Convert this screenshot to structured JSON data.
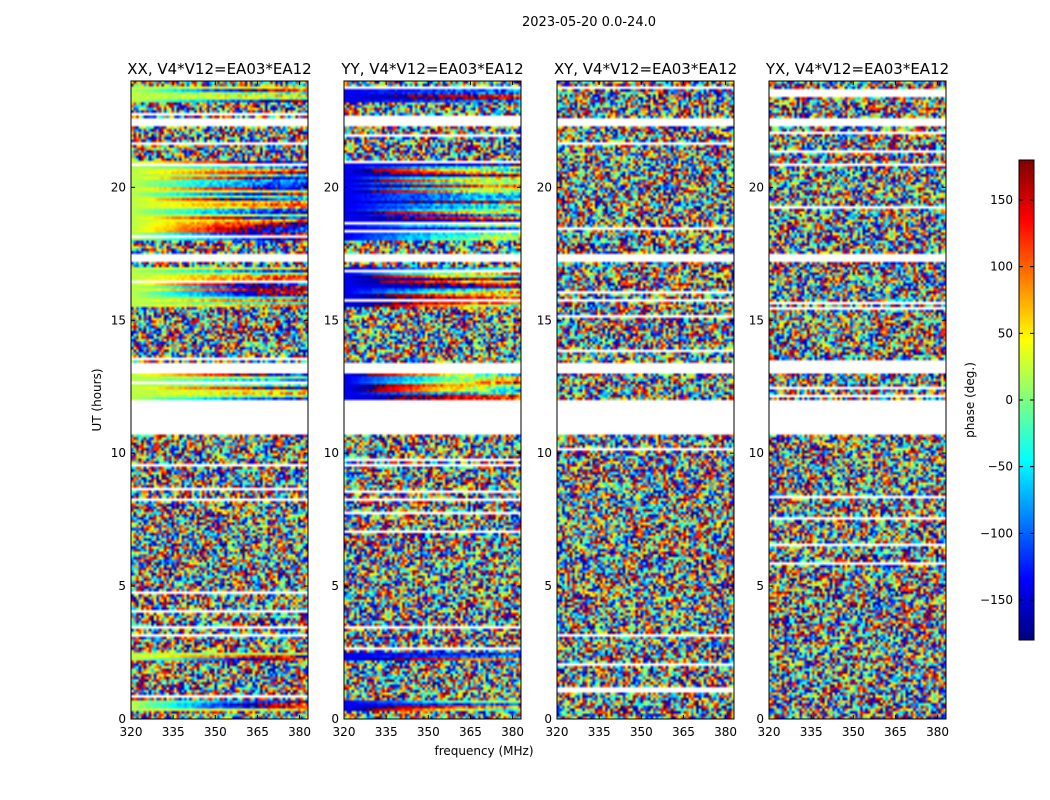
{
  "figure": {
    "suptitle": "2023-05-20 0.0-24.0",
    "xlabel": "frequency (MHz)",
    "ylabel": "UT (hours)"
  },
  "colorbar": {
    "label": "phase (deg.)",
    "ticks": [
      150,
      100,
      50,
      0,
      -50,
      -100,
      -150
    ],
    "tick_labels": [
      "150",
      "100",
      "50",
      "0",
      "−50",
      "−100",
      "−150"
    ],
    "vmin": -180,
    "vmax": 180,
    "colormap": "jet",
    "colors": [
      "#00007f",
      "#0000ff",
      "#007fff",
      "#00ffff",
      "#7fff7f",
      "#ffff00",
      "#ff7f00",
      "#ff0000",
      "#7f0000"
    ]
  },
  "chart_data": {
    "type": "heatmap",
    "value": "visibility phase (deg.)",
    "x_range": [
      320,
      383
    ],
    "y_range": [
      0,
      24
    ],
    "x_ticks": [
      320,
      335,
      350,
      365,
      380
    ],
    "y_ticks": [
      0,
      5,
      10,
      15,
      20
    ],
    "flagged_ut_intervals": [
      [
        10.7,
        12.0
      ],
      [
        13.0,
        13.4
      ],
      [
        17.2,
        17.5
      ],
      [
        22.3,
        22.6
      ]
    ],
    "panels": [
      {
        "pol": "XX",
        "title": "XX, V4*V12=EA03*EA12",
        "coherent_ut": [
          [
            0.3,
            0.7
          ],
          [
            2.2,
            2.5
          ],
          [
            12.0,
            13.0
          ],
          [
            15.5,
            17.0
          ],
          [
            18.0,
            21.0
          ],
          [
            23.2,
            23.8
          ]
        ],
        "mean_phase": 20
      },
      {
        "pol": "YY",
        "title": "YY, V4*V12=EA03*EA12",
        "coherent_ut": [
          [
            0.3,
            0.7
          ],
          [
            2.2,
            2.5
          ],
          [
            12.0,
            13.0
          ],
          [
            15.5,
            17.0
          ],
          [
            18.0,
            21.0
          ],
          [
            23.2,
            23.8
          ]
        ],
        "mean_phase": -140
      },
      {
        "pol": "XY",
        "title": "XY, V4*V12=EA03*EA12",
        "coherent_ut": [],
        "mean_phase": 0
      },
      {
        "pol": "YX",
        "title": "YX, V4*V12=EA03*EA12",
        "coherent_ut": [],
        "mean_phase": 0
      }
    ]
  }
}
